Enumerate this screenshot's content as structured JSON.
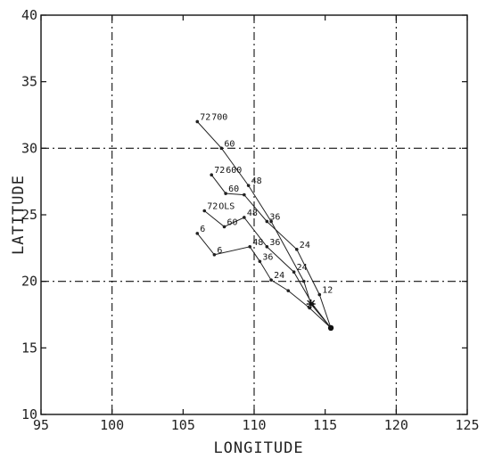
{
  "chart_data": {
    "type": "line",
    "title": "",
    "xlabel": "LONGITUDE",
    "ylabel": "LATITUDE",
    "xlim": [
      95,
      125
    ],
    "ylim": [
      10,
      40
    ],
    "x_ticks": [
      "95",
      "100",
      "105",
      "110",
      "115",
      "120",
      "125"
    ],
    "y_ticks": [
      "10",
      "15",
      "20",
      "25",
      "30",
      "35",
      "40"
    ],
    "grid": "dash-dot at 100, 110, 120 longitude and 20, 30 latitude",
    "legend": "none",
    "series": [
      {
        "name": "700",
        "points": [
          {
            "x": 115.4,
            "y": 16.5,
            "label": ""
          },
          {
            "x": 114.0,
            "y": 18.3,
            "label": ""
          },
          {
            "x": 113.5,
            "y": 20.0,
            "label": ""
          },
          {
            "x": 111.2,
            "y": 24.5,
            "label": ""
          },
          {
            "x": 109.6,
            "y": 27.2,
            "label": "48"
          },
          {
            "x": 107.7,
            "y": 30.0,
            "label": "60"
          },
          {
            "x": 106.0,
            "y": 32.0,
            "label": "72"
          }
        ]
      },
      {
        "name": "600",
        "points": [
          {
            "x": 115.4,
            "y": 16.5,
            "label": ""
          },
          {
            "x": 114.6,
            "y": 19.0,
            "label": "12"
          },
          {
            "x": 113.0,
            "y": 22.4,
            "label": "24"
          },
          {
            "x": 110.9,
            "y": 24.5,
            "label": "36"
          },
          {
            "x": 109.3,
            "y": 26.5,
            "label": ""
          },
          {
            "x": 108.0,
            "y": 26.6,
            "label": "60"
          },
          {
            "x": 107.0,
            "y": 28.0,
            "label": "72"
          }
        ]
      },
      {
        "name": "OLS",
        "points": [
          {
            "x": 115.4,
            "y": 16.5,
            "label": ""
          },
          {
            "x": 114.1,
            "y": 18.3,
            "label": ""
          },
          {
            "x": 112.8,
            "y": 20.7,
            "label": "24"
          },
          {
            "x": 110.9,
            "y": 22.6,
            "label": "36"
          },
          {
            "x": 109.3,
            "y": 24.8,
            "label": "48"
          },
          {
            "x": 107.9,
            "y": 24.1,
            "label": "60"
          },
          {
            "x": 106.5,
            "y": 25.3,
            "label": "72"
          }
        ]
      },
      {
        "name": "",
        "points": [
          {
            "x": 115.4,
            "y": 16.5,
            "label": ""
          },
          {
            "x": 113.9,
            "y": 18.0,
            "label": ""
          },
          {
            "x": 112.4,
            "y": 19.3,
            "label": ""
          },
          {
            "x": 111.2,
            "y": 20.1,
            "label": "24"
          },
          {
            "x": 110.4,
            "y": 21.5,
            "label": "36"
          },
          {
            "x": 109.7,
            "y": 22.6,
            "label": "48"
          },
          {
            "x": 107.2,
            "y": 22.0,
            "label": "6"
          },
          {
            "x": 106.0,
            "y": 23.6,
            "label": "6"
          }
        ]
      }
    ]
  }
}
